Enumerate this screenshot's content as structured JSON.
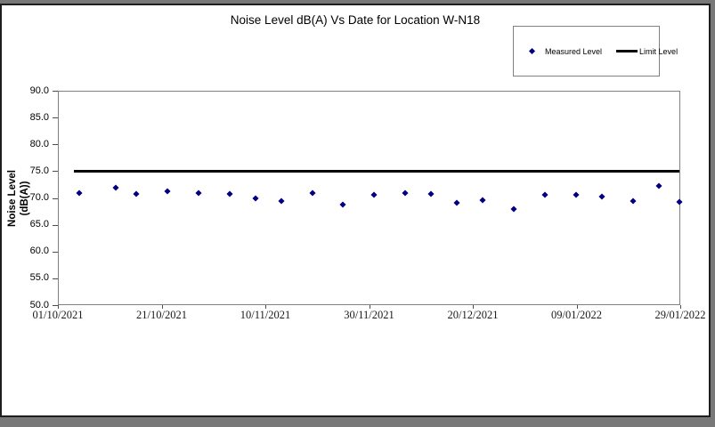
{
  "chart_data": {
    "type": "scatter",
    "title": "Noise Level dB(A) Vs Date for Location W-N18",
    "xlabel": "",
    "ylabel": "Noise Level (dB(A))",
    "ylabel_lines": [
      "Noise Level",
      "(dB(A))"
    ],
    "ylim": [
      50.0,
      90.0
    ],
    "y_tick_step": 5.0,
    "y_ticks": [
      "90.0",
      "85.0",
      "80.0",
      "75.0",
      "70.0",
      "65.0",
      "60.0",
      "55.0",
      "50.0"
    ],
    "x_ticks": [
      "01/10/2021",
      "21/10/2021",
      "10/11/2021",
      "30/11/2021",
      "20/12/2021",
      "09/01/2022",
      "29/01/2022"
    ],
    "x_axis_days_span": 120,
    "grid": false,
    "legend": {
      "position": "top-right",
      "entries": [
        {
          "label": "Measured Level",
          "marker": "diamond",
          "color": "#000080"
        },
        {
          "label": "Limit Level",
          "marker": "line",
          "color": "#000000"
        }
      ]
    },
    "series": [
      {
        "name": "Measured Level",
        "marker": "diamond",
        "color": "#000080",
        "points": [
          {
            "date": "05/10/2021",
            "day": 4,
            "value": 71.0
          },
          {
            "date": "12/10/2021",
            "day": 11,
            "value": 72.0
          },
          {
            "date": "16/10/2021",
            "day": 15,
            "value": 70.7
          },
          {
            "date": "22/10/2021",
            "day": 21,
            "value": 71.3
          },
          {
            "date": "28/10/2021",
            "day": 27,
            "value": 71.0
          },
          {
            "date": "03/11/2021",
            "day": 33,
            "value": 70.8
          },
          {
            "date": "08/11/2021",
            "day": 38,
            "value": 69.9
          },
          {
            "date": "13/11/2021",
            "day": 43,
            "value": 69.4
          },
          {
            "date": "19/11/2021",
            "day": 49,
            "value": 71.0
          },
          {
            "date": "25/11/2021",
            "day": 55,
            "value": 68.7
          },
          {
            "date": "01/12/2021",
            "day": 61,
            "value": 70.6
          },
          {
            "date": "07/12/2021",
            "day": 67,
            "value": 71.0
          },
          {
            "date": "12/12/2021",
            "day": 72,
            "value": 70.8
          },
          {
            "date": "17/12/2021",
            "day": 77,
            "value": 69.0
          },
          {
            "date": "22/12/2021",
            "day": 82,
            "value": 69.6
          },
          {
            "date": "28/12/2021",
            "day": 88,
            "value": 67.9
          },
          {
            "date": "03/01/2022",
            "day": 94,
            "value": 70.6
          },
          {
            "date": "09/01/2022",
            "day": 100,
            "value": 70.6
          },
          {
            "date": "14/01/2022",
            "day": 105,
            "value": 70.2
          },
          {
            "date": "20/01/2022",
            "day": 111,
            "value": 69.4
          },
          {
            "date": "25/01/2022",
            "day": 116,
            "value": 72.3
          },
          {
            "date": "29/01/2022",
            "day": 120,
            "value": 69.2
          }
        ]
      },
      {
        "name": "Limit Level",
        "style": "line",
        "color": "#000000",
        "value": 75.0,
        "start_day": 3,
        "end_day": 120
      }
    ]
  }
}
